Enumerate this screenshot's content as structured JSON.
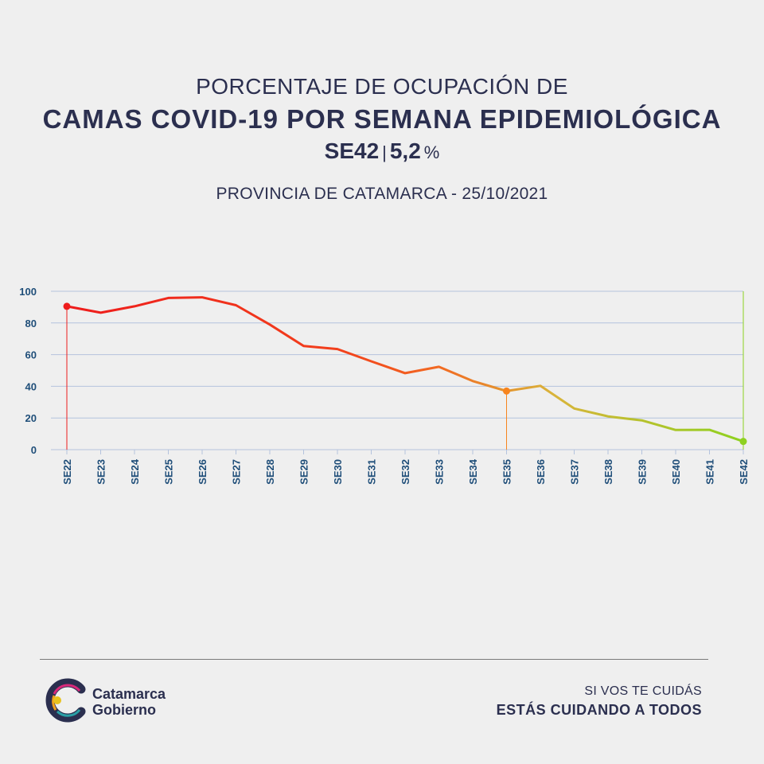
{
  "header": {
    "line1": "PORCENTAJE DE OCUPACIÓN DE",
    "line2": "CAMAS COVID-19 POR SEMANA EPIDEMIOLÓGICA",
    "week": "SE42",
    "separator": "|",
    "value": "5,2",
    "unit": "%"
  },
  "subtitle": "PROVINCIA DE CATAMARCA - 25/10/2021",
  "footer": {
    "brand_line1": "Catamarca",
    "brand_line2": "Gobierno",
    "slogan_line1": "SI VOS TE CUIDÁS",
    "slogan_line2": "ESTÁS CUIDANDO A TODOS"
  },
  "colors": {
    "text": "#2b2f4f",
    "axis_label": "#1f4e79",
    "grid": "#b4c3dd",
    "red": "#ee1c1c",
    "orange": "#f7841e",
    "green": "#8ed11f"
  },
  "chart_data": {
    "type": "line",
    "title": "",
    "xlabel": "",
    "ylabel": "",
    "ylim": [
      0,
      100
    ],
    "yticks": [
      0,
      20,
      40,
      60,
      80,
      100
    ],
    "grid": true,
    "categories": [
      "SE22",
      "SE23",
      "SE24",
      "SE25",
      "SE26",
      "SE27",
      "SE28",
      "SE29",
      "SE30",
      "SE31",
      "SE32",
      "SE33",
      "SE34",
      "SE35",
      "SE36",
      "SE37",
      "SE38",
      "SE39",
      "SE40",
      "SE41",
      "SE42"
    ],
    "values": [
      90.5,
      86.5,
      90.5,
      95.8,
      96.2,
      91.2,
      79,
      65.5,
      63.5,
      55.8,
      48.3,
      52.3,
      43.3,
      37,
      40.3,
      26,
      21,
      18.5,
      12.4,
      12.5,
      5.2
    ],
    "highlighted_points": [
      "SE22",
      "SE35",
      "SE42"
    ]
  }
}
